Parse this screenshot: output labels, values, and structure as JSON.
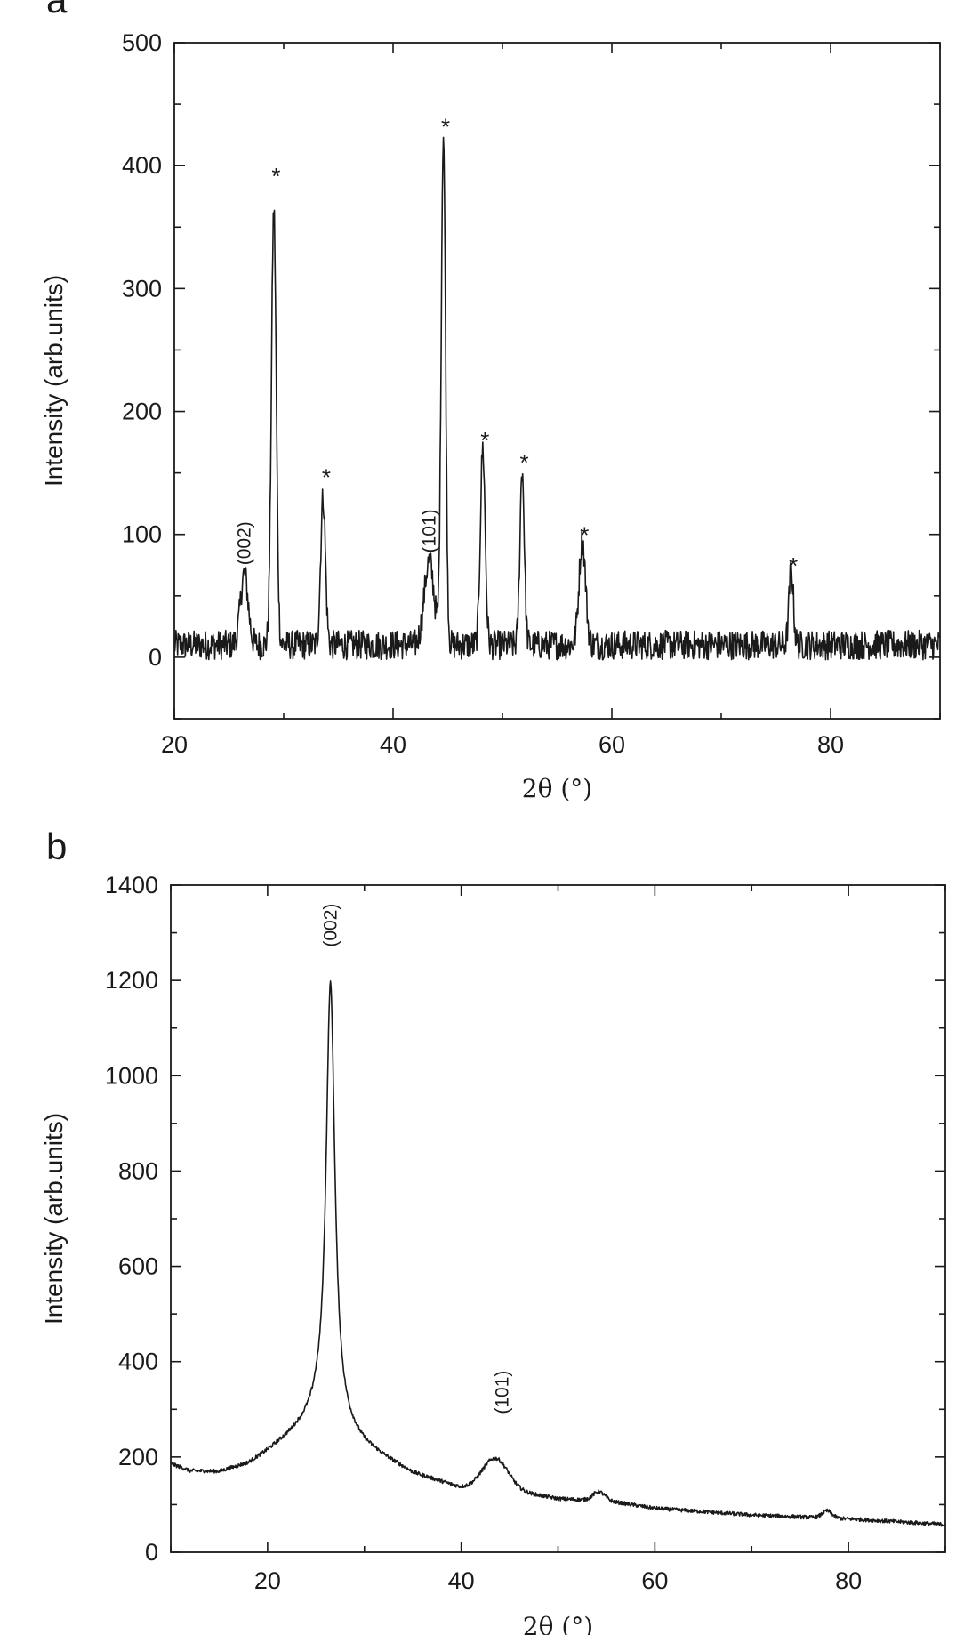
{
  "chart_data": [
    {
      "panel": "a",
      "type": "line",
      "xlabel": "2θ (°)",
      "ylabel": "Intensity (arb.units)",
      "xlim": [
        20,
        90
      ],
      "ylim": [
        -50,
        500
      ],
      "xticks": [
        20,
        40,
        60,
        80
      ],
      "yticks": [
        0,
        100,
        200,
        300,
        400,
        500
      ],
      "baseline": 10,
      "noise": 12,
      "x_start": 20,
      "x_end": 90,
      "peaks": [
        {
          "x": 26.4,
          "y": 58,
          "w": 0.35
        },
        {
          "x": 29.1,
          "y": 355,
          "w": 0.22
        },
        {
          "x": 33.6,
          "y": 120,
          "w": 0.22
        },
        {
          "x": 43.3,
          "y": 68,
          "w": 0.45
        },
        {
          "x": 44.6,
          "y": 415,
          "w": 0.2
        },
        {
          "x": 48.2,
          "y": 160,
          "w": 0.22
        },
        {
          "x": 51.8,
          "y": 143,
          "w": 0.2
        },
        {
          "x": 57.3,
          "y": 85,
          "w": 0.3
        },
        {
          "x": 76.4,
          "y": 62,
          "w": 0.2
        }
      ],
      "annotations": [
        {
          "text": "(002)",
          "x": 26.4,
          "y": 75,
          "rotate": true
        },
        {
          "text": "(101)",
          "x": 43.3,
          "y": 85,
          "rotate": true
        },
        {
          "text": "*",
          "x": 29.3,
          "y": 385
        },
        {
          "text": "*",
          "x": 33.9,
          "y": 140
        },
        {
          "text": "*",
          "x": 44.8,
          "y": 425
        },
        {
          "text": "*",
          "x": 48.4,
          "y": 170
        },
        {
          "text": "*",
          "x": 52.0,
          "y": 152
        },
        {
          "text": "*",
          "x": 57.5,
          "y": 93
        },
        {
          "text": "*",
          "x": 76.6,
          "y": 68
        }
      ]
    },
    {
      "panel": "b",
      "type": "line",
      "xlabel": "2θ (°)",
      "ylabel": "Intensity (arb.units)",
      "xlim": [
        10,
        90
      ],
      "ylim": [
        0,
        1400
      ],
      "xticks": [
        20,
        40,
        60,
        80
      ],
      "yticks": [
        0,
        200,
        400,
        600,
        800,
        1000,
        1200,
        1400
      ],
      "noise": 4,
      "x_start": 10,
      "x_end": 90,
      "background": [
        {
          "x": 10,
          "y": 185
        },
        {
          "x": 12,
          "y": 170
        },
        {
          "x": 15,
          "y": 168
        },
        {
          "x": 18,
          "y": 185
        },
        {
          "x": 20,
          "y": 210
        },
        {
          "x": 25,
          "y": 280
        },
        {
          "x": 28,
          "y": 250
        },
        {
          "x": 30,
          "y": 220
        },
        {
          "x": 35,
          "y": 165
        },
        {
          "x": 40,
          "y": 135
        },
        {
          "x": 45,
          "y": 130
        },
        {
          "x": 50,
          "y": 112
        },
        {
          "x": 52,
          "y": 110
        },
        {
          "x": 55,
          "y": 108
        },
        {
          "x": 60,
          "y": 92
        },
        {
          "x": 70,
          "y": 78
        },
        {
          "x": 80,
          "y": 70
        },
        {
          "x": 90,
          "y": 58
        }
      ],
      "peaks": [
        {
          "x": 26.5,
          "y": 930,
          "w": 0.55,
          "shape": "lorentz"
        },
        {
          "x": 43.5,
          "y": 65,
          "w": 1.3,
          "shape": "gauss"
        },
        {
          "x": 54.2,
          "y": 18,
          "w": 0.6,
          "shape": "gauss"
        },
        {
          "x": 77.8,
          "y": 15,
          "w": 0.5,
          "shape": "gauss"
        }
      ],
      "annotations": [
        {
          "text": "(002)",
          "x": 26.5,
          "y": 1270,
          "rotate": true
        },
        {
          "text": "(101)",
          "x": 44.2,
          "y": 290,
          "rotate": true
        }
      ]
    }
  ]
}
